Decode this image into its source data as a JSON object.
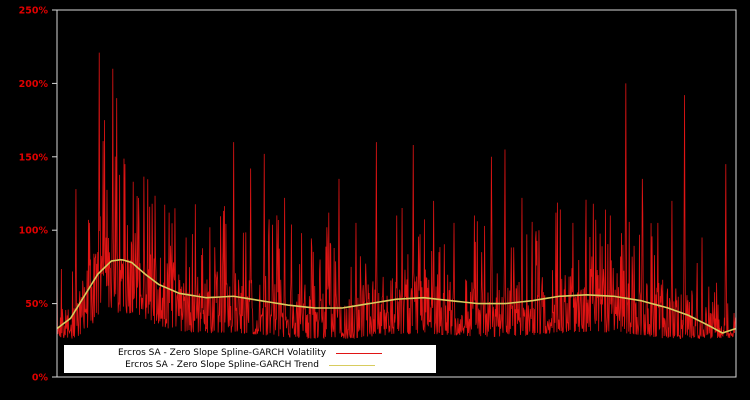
{
  "chart": {
    "background": "#000000",
    "frame_color": "#d9d9d9",
    "tick_label_color": "#e00000"
  },
  "legend": {
    "bg": "#ffffff",
    "text_color": "#000000",
    "items": [
      {
        "label": "Ercros SA - Zero Slope Spline-GARCH Volatility",
        "color": "#e01414"
      },
      {
        "label": "Ercros SA - Zero Slope Spline-GARCH Trend",
        "color": "#d8cc5e"
      }
    ]
  },
  "chart_data": {
    "type": "line",
    "title": "",
    "xlabel": "",
    "ylabel": "",
    "ylim": [
      0,
      2.5
    ],
    "yticks": [
      {
        "label": "0%",
        "value": 0.0
      },
      {
        "label": "50%",
        "value": 0.5
      },
      {
        "label": "100%",
        "value": 1.0
      },
      {
        "label": "150%",
        "value": 1.5
      },
      {
        "label": "200%",
        "value": 2.0
      },
      {
        "label": "250%",
        "value": 2.5
      }
    ],
    "grid": false,
    "legend_position": "bottom-left-inside",
    "series": [
      {
        "name": "Ercros SA - Zero Slope Spline-GARCH Volatility",
        "color": "#e01414",
        "style": "noisy-spiky"
      },
      {
        "name": "Ercros SA - Zero Slope Spline-GARCH Trend",
        "color": "#d8cc5e",
        "style": "smooth"
      }
    ],
    "trend_keypoints": [
      [
        0.0,
        0.33
      ],
      [
        0.02,
        0.4
      ],
      [
        0.04,
        0.55
      ],
      [
        0.06,
        0.7
      ],
      [
        0.08,
        0.79
      ],
      [
        0.095,
        0.8
      ],
      [
        0.11,
        0.78
      ],
      [
        0.13,
        0.7
      ],
      [
        0.15,
        0.63
      ],
      [
        0.18,
        0.57
      ],
      [
        0.22,
        0.54
      ],
      [
        0.26,
        0.55
      ],
      [
        0.3,
        0.52
      ],
      [
        0.34,
        0.49
      ],
      [
        0.38,
        0.47
      ],
      [
        0.42,
        0.47
      ],
      [
        0.46,
        0.5
      ],
      [
        0.5,
        0.53
      ],
      [
        0.54,
        0.54
      ],
      [
        0.58,
        0.52
      ],
      [
        0.62,
        0.5
      ],
      [
        0.66,
        0.5
      ],
      [
        0.7,
        0.52
      ],
      [
        0.74,
        0.55
      ],
      [
        0.78,
        0.56
      ],
      [
        0.82,
        0.55
      ],
      [
        0.86,
        0.52
      ],
      [
        0.9,
        0.47
      ],
      [
        0.93,
        0.42
      ],
      [
        0.96,
        0.35
      ],
      [
        0.98,
        0.3
      ],
      [
        1.0,
        0.33
      ]
    ],
    "volatility": {
      "n_points": 1400,
      "seed": 7,
      "floor": 0.26,
      "spikes": [
        [
          0.028,
          1.28
        ],
        [
          0.048,
          1.05
        ],
        [
          0.062,
          2.21
        ],
        [
          0.07,
          1.75
        ],
        [
          0.082,
          2.1
        ],
        [
          0.088,
          1.9
        ],
        [
          0.1,
          1.45
        ],
        [
          0.12,
          1.22
        ],
        [
          0.14,
          1.18
        ],
        [
          0.165,
          1.12
        ],
        [
          0.19,
          0.95
        ],
        [
          0.225,
          1.02
        ],
        [
          0.26,
          1.6
        ],
        [
          0.285,
          1.42
        ],
        [
          0.305,
          1.52
        ],
        [
          0.335,
          1.22
        ],
        [
          0.36,
          0.98
        ],
        [
          0.4,
          1.12
        ],
        [
          0.415,
          1.35
        ],
        [
          0.44,
          1.05
        ],
        [
          0.47,
          1.6
        ],
        [
          0.5,
          1.1
        ],
        [
          0.525,
          1.58
        ],
        [
          0.555,
          1.2
        ],
        [
          0.585,
          1.05
        ],
        [
          0.615,
          1.1
        ],
        [
          0.64,
          1.5
        ],
        [
          0.66,
          1.55
        ],
        [
          0.685,
          1.22
        ],
        [
          0.71,
          1.0
        ],
        [
          0.735,
          1.12
        ],
        [
          0.76,
          1.05
        ],
        [
          0.79,
          1.18
        ],
        [
          0.815,
          1.1
        ],
        [
          0.838,
          2.0
        ],
        [
          0.862,
          1.35
        ],
        [
          0.885,
          1.05
        ],
        [
          0.906,
          1.2
        ],
        [
          0.924,
          1.92
        ],
        [
          0.95,
          0.95
        ],
        [
          0.985,
          1.45
        ]
      ]
    }
  }
}
